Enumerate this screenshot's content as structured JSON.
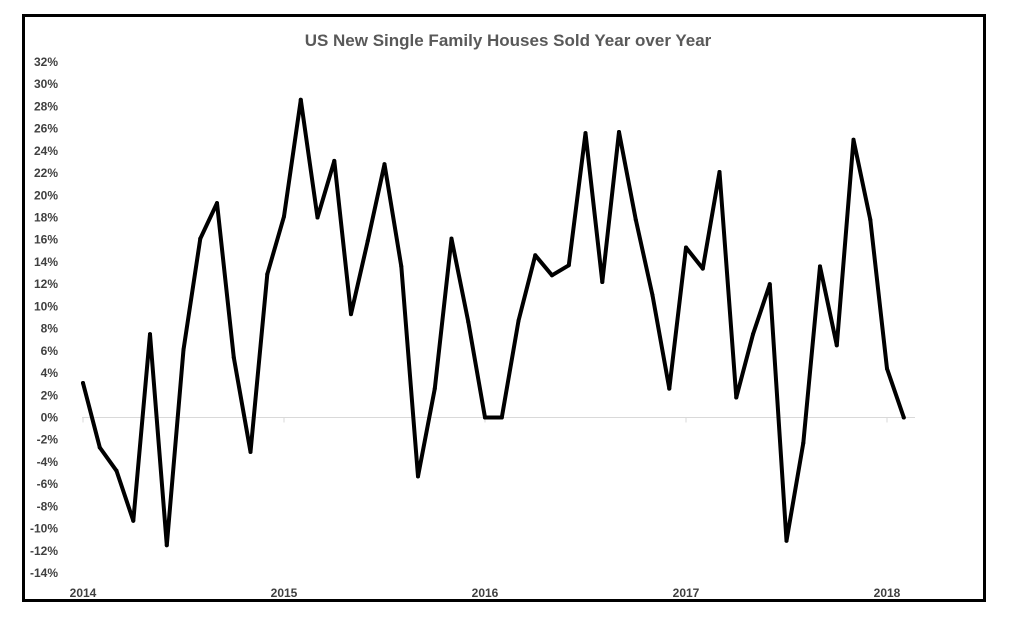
{
  "chart_data": {
    "type": "line",
    "title": "US New Single Family Houses Sold Year over Year",
    "xlabel": "",
    "ylabel": "",
    "ylim": [
      -0.14,
      0.32
    ],
    "yticks": [
      "32%",
      "30%",
      "28%",
      "26%",
      "24%",
      "22%",
      "20%",
      "18%",
      "16%",
      "14%",
      "12%",
      "10%",
      "8%",
      "6%",
      "4%",
      "2%",
      "0%",
      "-2%",
      "-4%",
      "-6%",
      "-8%",
      "-10%",
      "-12%",
      "-14%"
    ],
    "xticks": [
      "2014",
      "2015",
      "2016",
      "2017",
      "2018"
    ],
    "grid": false,
    "legend": "none",
    "series": [
      {
        "color": "#000000",
        "x": [
          "2014-01",
          "2014-02",
          "2014-03",
          "2014-04",
          "2014-05",
          "2014-06",
          "2014-07",
          "2014-08",
          "2014-09",
          "2014-10",
          "2014-11",
          "2014-12",
          "2015-01",
          "2015-02",
          "2015-03",
          "2015-04",
          "2015-05",
          "2015-06",
          "2015-07",
          "2015-08",
          "2015-09",
          "2015-10",
          "2015-11",
          "2015-12",
          "2016-01",
          "2016-02",
          "2016-03",
          "2016-04",
          "2016-05",
          "2016-06",
          "2016-07",
          "2016-08",
          "2016-09",
          "2016-10",
          "2016-11",
          "2016-12",
          "2017-01",
          "2017-02",
          "2017-03",
          "2017-04",
          "2017-05",
          "2017-06",
          "2017-07",
          "2017-08",
          "2017-09",
          "2017-10",
          "2017-11",
          "2017-12",
          "2018-01",
          "2018-02"
        ],
        "values": [
          0.031,
          -0.027,
          -0.048,
          -0.093,
          0.075,
          -0.115,
          0.061,
          0.161,
          0.193,
          0.054,
          -0.031,
          0.129,
          0.181,
          0.286,
          0.18,
          0.231,
          0.093,
          0.159,
          0.228,
          0.136,
          -0.053,
          0.026,
          0.161,
          0.086,
          0.0,
          0.0,
          0.087,
          0.146,
          0.128,
          0.137,
          0.256,
          0.122,
          0.257,
          0.178,
          0.11,
          0.026,
          0.153,
          0.134,
          0.221,
          0.018,
          0.075,
          0.12,
          -0.111,
          -0.023,
          0.136,
          0.065,
          0.25,
          0.178,
          0.044,
          0.0
        ]
      }
    ]
  }
}
